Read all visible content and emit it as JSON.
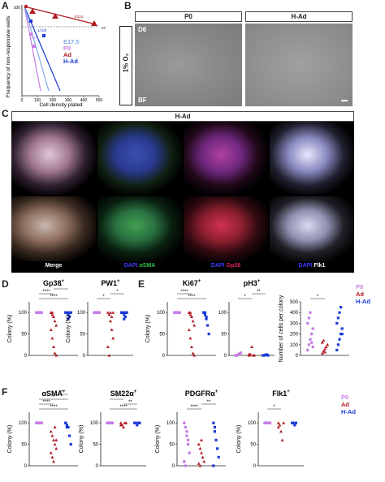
{
  "panel_labels": {
    "A": "A",
    "B": "B",
    "C": "C",
    "D": "D",
    "E": "E",
    "F": "F"
  },
  "colors": {
    "p0": "#c87ee6",
    "ad": "#b01c22",
    "had": "#1a3bd6",
    "e175": "#7fa9e8",
    "dapi": "#3a3cff",
    "asma": "#2fc24a",
    "gp38": "#e0205a",
    "flk1": "#ffffff"
  },
  "panelA": {
    "ylabel": "Frequency of non-responsive wells",
    "xlabel": "Cell density plated",
    "ann_1324": "1/324",
    "ann_137": "37",
    "ann_1100": "1/100",
    "ann_160": "1/60",
    "ytick_top": "100",
    "legend": [
      {
        "label": "E17.5",
        "color": "#7fa9e8"
      },
      {
        "label": "P0",
        "color": "#c87ee6"
      },
      {
        "label": "Ad",
        "color": "#b01c22"
      },
      {
        "label": "H-Ad",
        "color": "#1a3bd6"
      }
    ],
    "xticks": [
      "0",
      "100",
      "200",
      "300",
      "400",
      "500"
    ]
  },
  "panelB": {
    "o2": "1% O₂",
    "col1": "P0",
    "col2": "H-Ad",
    "day": "D6",
    "bf": "BF"
  },
  "panelC": {
    "header": "H-Ad",
    "labels": [
      "Merge",
      "DAPI",
      "αSMA",
      "DAPI",
      "Gp38",
      "DAPI",
      "Flk1"
    ]
  },
  "rowD": {
    "charts": [
      {
        "title": "Gp38",
        "sup": "+",
        "ylabel": "Colony (%)",
        "yticks": [
          "0",
          "50",
          "100"
        ],
        "sig": [
          "****",
          "****",
          "*"
        ]
      },
      {
        "title": "PW1",
        "sup": "+",
        "ylabel": "Colony (%)",
        "yticks": [
          "0",
          "50",
          "100"
        ],
        "sig": [
          "*",
          "*"
        ]
      }
    ],
    "legend": [
      {
        "label": "P0",
        "color": "#c87ee6"
      },
      {
        "label": "Ad",
        "color": "#b01c22"
      },
      {
        "label": "H-Ad",
        "color": "#1a3bd6"
      }
    ]
  },
  "rowE": {
    "charts": [
      {
        "title": "Ki67",
        "sup": "+",
        "ylabel": "Colony (%)",
        "yticks": [
          "0",
          "50",
          "100"
        ],
        "sig": [
          "****",
          "****"
        ]
      },
      {
        "title": "pH3",
        "sup": "+",
        "ylabel": "",
        "yticks": [
          "0",
          "50",
          "100"
        ],
        "sig": [
          "*",
          "**"
        ]
      },
      {
        "title": "",
        "sup": "",
        "ylabel": "Number of cells per colony",
        "yticks": [
          "0",
          "100",
          "200",
          "300",
          "400",
          "500"
        ],
        "sig": [
          "*"
        ]
      }
    ],
    "legend": [
      {
        "label": "P0",
        "color": "#c87ee6"
      },
      {
        "label": "Ad",
        "color": "#b01c22"
      },
      {
        "label": "H-Ad",
        "color": "#1a3bd6"
      }
    ]
  },
  "rowF": {
    "charts": [
      {
        "title": "αSMA",
        "sup": "+",
        "ylabel": "Colony (%)",
        "yticks": [
          "0",
          "50",
          "100"
        ],
        "sig": [
          "****",
          "****",
          "*",
          "**"
        ]
      },
      {
        "title": "SM22α",
        "sup": "+",
        "ylabel": "Colony (%)",
        "yticks": [
          "0",
          "50",
          "100"
        ],
        "sig": [
          "****",
          "**",
          "*"
        ]
      },
      {
        "title": "PDGFRα",
        "sup": "+",
        "ylabel": "Colony (%)",
        "yticks": [
          "0",
          "50",
          "100"
        ],
        "sig": [
          "****",
          "**"
        ]
      },
      {
        "title": "Flk1",
        "sup": "+",
        "ylabel": "Colony (%)",
        "yticks": [
          "0",
          "50",
          "100"
        ],
        "sig": [
          "*"
        ]
      }
    ],
    "legend": [
      {
        "label": "P0",
        "color": "#c87ee6"
      },
      {
        "label": "Ad",
        "color": "#b01c22"
      },
      {
        "label": "H-Ad",
        "color": "#1a3bd6"
      }
    ]
  }
}
